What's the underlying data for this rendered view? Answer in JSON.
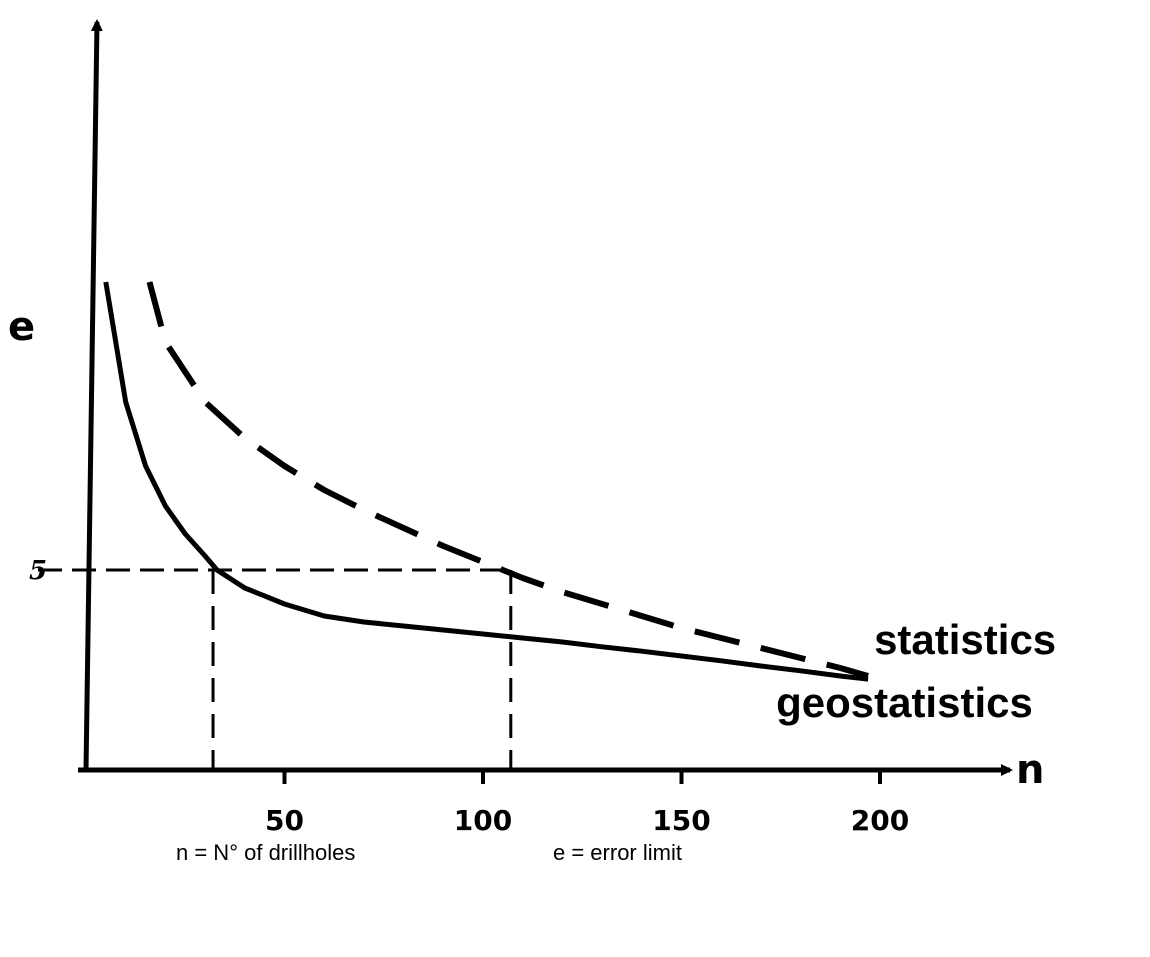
{
  "chart_data": {
    "type": "line",
    "xlabel": "n",
    "ylabel": "e",
    "x_ticks": [
      "50",
      "100",
      "150",
      "200"
    ],
    "y_ticks": [
      "5"
    ],
    "xlim": [
      0,
      200
    ],
    "ylim": [
      0,
      15
    ],
    "grid": false,
    "series": [
      {
        "name": "geostatistics",
        "style": "solid",
        "points": [
          [
            5,
            12.2
          ],
          [
            10,
            9.2
          ],
          [
            15,
            7.6
          ],
          [
            20,
            6.6
          ],
          [
            25,
            5.9
          ],
          [
            30,
            5.35
          ],
          [
            33,
            5.0
          ],
          [
            40,
            4.55
          ],
          [
            50,
            4.15
          ],
          [
            60,
            3.85
          ],
          [
            70,
            3.7
          ],
          [
            80,
            3.6
          ],
          [
            90,
            3.5
          ],
          [
            100,
            3.4
          ],
          [
            110,
            3.3
          ],
          [
            120,
            3.2
          ],
          [
            130,
            3.08
          ],
          [
            140,
            2.97
          ],
          [
            150,
            2.85
          ],
          [
            160,
            2.73
          ],
          [
            170,
            2.6
          ],
          [
            180,
            2.48
          ],
          [
            190,
            2.35
          ],
          [
            197,
            2.27
          ]
        ]
      },
      {
        "name": "statistics",
        "style": "dashed",
        "points": [
          [
            16,
            12.2
          ],
          [
            20,
            10.7
          ],
          [
            30,
            9.2
          ],
          [
            40,
            8.3
          ],
          [
            50,
            7.6
          ],
          [
            60,
            7.0
          ],
          [
            70,
            6.5
          ],
          [
            80,
            6.05
          ],
          [
            90,
            5.6
          ],
          [
            100,
            5.2
          ],
          [
            105,
            5.0
          ],
          [
            110,
            4.8
          ],
          [
            120,
            4.45
          ],
          [
            130,
            4.15
          ],
          [
            140,
            3.85
          ],
          [
            150,
            3.55
          ],
          [
            160,
            3.3
          ],
          [
            170,
            3.05
          ],
          [
            180,
            2.8
          ],
          [
            190,
            2.55
          ],
          [
            197,
            2.35
          ]
        ]
      }
    ],
    "reference_lines": {
      "y_level": 5,
      "x_values": [
        32,
        107
      ]
    }
  },
  "footnotes": {
    "n": "n = N° of drillholes",
    "e": "e = error limit"
  }
}
